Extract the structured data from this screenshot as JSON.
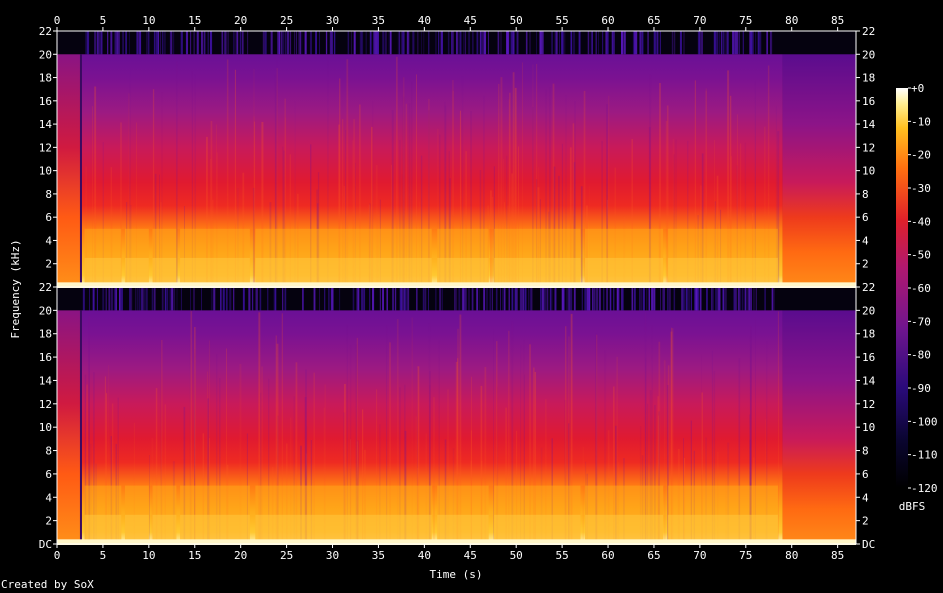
{
  "footer": {
    "credit": "Created by SoX"
  },
  "chart_data": {
    "type": "heatmap",
    "title": "",
    "xlabel": "Time (s)",
    "ylabel": "Frequency (kHz)",
    "xlim": [
      0,
      87
    ],
    "x_ticks": [
      "0",
      "5",
      "10",
      "15",
      "20",
      "25",
      "30",
      "35",
      "40",
      "45",
      "50",
      "55",
      "60",
      "65",
      "70",
      "75",
      "80",
      "85"
    ],
    "x_tick_values": [
      0,
      5,
      10,
      15,
      20,
      25,
      30,
      35,
      40,
      45,
      50,
      55,
      60,
      65,
      70,
      75,
      80,
      85
    ],
    "channels": [
      {
        "ylim": [
          0,
          22
        ],
        "y_ticks": [
          "DC",
          "2",
          "4",
          "6",
          "8",
          "10",
          "12",
          "14",
          "16",
          "18",
          "20",
          "22"
        ],
        "y_tick_values": [
          0,
          2,
          4,
          6,
          8,
          10,
          12,
          14,
          16,
          18,
          20,
          22
        ]
      },
      {
        "ylim": [
          0,
          22
        ],
        "y_ticks": [
          "2",
          "4",
          "6",
          "8",
          "10",
          "12",
          "14",
          "16",
          "18",
          "20",
          "22"
        ],
        "y_tick_values": [
          2,
          4,
          6,
          8,
          10,
          12,
          14,
          16,
          18,
          20,
          22
        ]
      }
    ],
    "colorbar": {
      "label": "dBFS",
      "range": [
        -120,
        0
      ],
      "ticks": [
        "+0",
        "-10",
        "-20",
        "-30",
        "-40",
        "-50",
        "-60",
        "-70",
        "-80",
        "-90",
        "-100",
        "-110",
        "-120"
      ],
      "tick_values": [
        0,
        -10,
        -20,
        -30,
        -40,
        -50,
        -60,
        -70,
        -80,
        -90,
        -100,
        -110,
        -120
      ]
    },
    "colors": {
      "grid_frame": "#ffffff",
      "background": "#000000",
      "low": "#000000",
      "low_mid": "#2a0a7a",
      "mid": "#8a1a9a",
      "high_mid": "#e0202a",
      "high": "#ff9a10",
      "peak": "#ffffff"
    }
  }
}
